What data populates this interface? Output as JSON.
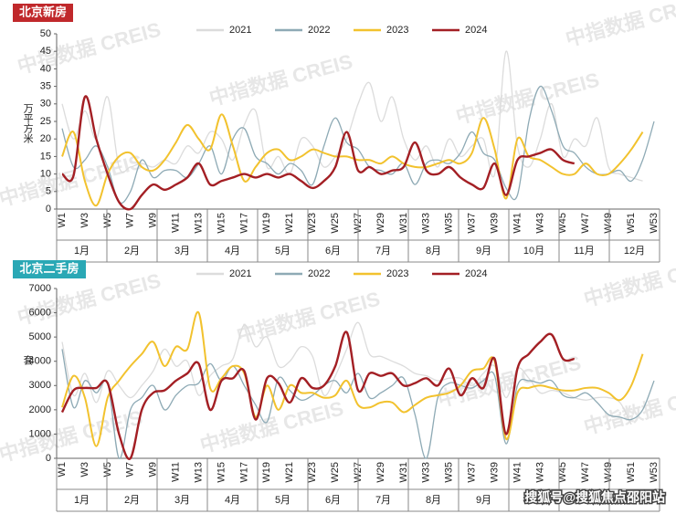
{
  "chart_data": [
    {
      "type": "line",
      "title": "北京新房",
      "y_label": "万平方米",
      "categories": [
        "W1",
        null,
        "W3",
        null,
        "W5",
        null,
        "W7",
        null,
        "W9",
        null,
        "W11",
        null,
        "W13",
        null,
        "W15",
        null,
        "W17",
        null,
        "W19",
        null,
        "W21",
        null,
        "W23",
        null,
        "W25",
        null,
        "W27",
        null,
        "W29",
        null,
        "W31",
        null,
        "W33",
        null,
        "W35",
        null,
        "W37",
        null,
        "W39",
        null,
        "W41",
        null,
        "W43",
        null,
        "W45",
        null,
        "W47",
        null,
        "W49",
        null,
        "W51",
        null,
        "W53"
      ],
      "months": [
        "1月",
        "2月",
        "3月",
        "4月",
        "5月",
        "6月",
        "7月",
        "8月",
        "9月",
        "10月",
        "11月",
        "12月"
      ],
      "ylim": [
        0,
        50
      ],
      "yticks": [
        0,
        5,
        10,
        15,
        20,
        25,
        30,
        35,
        40,
        45,
        50
      ],
      "series": [
        {
          "name": "2021",
          "color": "#dcdcdc",
          "values": [
            30,
            20,
            28,
            20,
            32,
            12,
            12,
            13,
            12,
            14,
            13,
            18,
            16,
            22,
            20,
            14,
            24,
            28,
            12,
            15,
            10,
            20,
            18,
            12,
            15,
            20,
            30,
            36,
            25,
            32,
            20,
            14,
            18,
            12,
            20,
            15,
            18,
            20,
            10,
            45,
            18,
            12,
            20,
            30,
            15,
            20,
            18,
            26,
            12,
            10,
            9,
            8,
            null
          ]
        },
        {
          "name": "2022",
          "color": "#8eaab5",
          "values": [
            23,
            12,
            14,
            18,
            12,
            2,
            5,
            14,
            9,
            11,
            11,
            9,
            13,
            18,
            10,
            20,
            23,
            15,
            13,
            10,
            13,
            11,
            7,
            18,
            26,
            19,
            17,
            12,
            11,
            10,
            13,
            7,
            13,
            14,
            13,
            16,
            22,
            16,
            14,
            6,
            4,
            25,
            35,
            28,
            18,
            16,
            12,
            10,
            10,
            11,
            8,
            14,
            25
          ]
        },
        {
          "name": "2023",
          "color": "#f2c22e",
          "values": [
            15,
            22,
            8,
            1,
            10,
            15,
            16,
            12,
            11,
            14,
            19,
            24,
            20,
            17,
            27,
            18,
            8,
            12,
            16,
            17,
            14,
            15,
            17,
            16,
            15,
            15,
            14,
            14,
            13,
            15,
            13,
            12,
            12,
            13,
            14,
            13,
            16,
            26,
            17,
            3,
            20,
            15,
            14,
            12,
            10,
            10,
            13,
            10,
            10,
            13,
            17,
            22,
            null
          ]
        },
        {
          "name": "2024",
          "color": "#a31f24",
          "values": [
            10,
            9.5,
            32,
            20,
            10,
            2,
            0,
            4,
            7,
            5.5,
            7,
            9,
            13,
            7,
            8,
            9,
            10,
            9,
            10,
            9,
            10,
            8,
            6,
            8,
            12,
            22,
            11,
            12,
            10,
            11,
            12,
            19,
            11,
            10,
            12,
            9,
            7,
            6,
            13,
            4,
            14,
            15,
            16,
            17,
            14,
            13,
            null,
            null,
            null,
            null,
            null,
            null,
            null
          ]
        }
      ]
    },
    {
      "type": "line",
      "title": "北京二手房",
      "y_label": "套",
      "categories": [
        "W1",
        null,
        "W3",
        null,
        "W5",
        null,
        "W7",
        null,
        "W9",
        null,
        "W11",
        null,
        "W13",
        null,
        "W15",
        null,
        "W17",
        null,
        "W19",
        null,
        "W21",
        null,
        "W23",
        null,
        "W25",
        null,
        "W27",
        null,
        "W29",
        null,
        "W31",
        null,
        "W33",
        null,
        "W35",
        null,
        "W37",
        null,
        "W39",
        null,
        "W41",
        null,
        "W43",
        null,
        "W45",
        null,
        "W47",
        null,
        "W49",
        null,
        "W51",
        null,
        "W53"
      ],
      "months": [
        "1月",
        "2月",
        "3月",
        "4月",
        "5月",
        "6月",
        "7月",
        "8月",
        "9月"
      ],
      "ylim": [
        0,
        7000
      ],
      "yticks": [
        0,
        1000,
        2000,
        3000,
        4000,
        5000,
        6000,
        7000
      ],
      "series": [
        {
          "name": "2021",
          "color": "#dcdcdc",
          "values": [
            4800,
            2600,
            3500,
            2300,
            3600,
            3000,
            2500,
            3000,
            3600,
            4500,
            3800,
            4000,
            2600,
            3400,
            3800,
            4100,
            5500,
            4600,
            5000,
            3800,
            4000,
            4600,
            4200,
            2600,
            3400,
            4500,
            5600,
            4300,
            4200,
            4000,
            3800,
            3500,
            3400,
            3200,
            3300,
            3300,
            3000,
            3500,
            3800,
            2500,
            3700,
            3300,
            2700,
            2800,
            2700,
            2500,
            2400,
            2500,
            2500,
            2300,
            1400,
            null,
            null
          ]
        },
        {
          "name": "2022",
          "color": "#8eaab5",
          "values": [
            4500,
            2100,
            3200,
            2700,
            3100,
            0,
            2000,
            2500,
            3000,
            2000,
            2600,
            3000,
            3100,
            3900,
            3200,
            3800,
            3000,
            2200,
            1500,
            3300,
            2800,
            2400,
            2600,
            3000,
            3200,
            2700,
            3500,
            2500,
            2700,
            3000,
            3300,
            1800,
            0,
            2500,
            3100,
            3000,
            2900,
            3200,
            3400,
            600,
            3000,
            3200,
            3100,
            3200,
            2600,
            2500,
            2700,
            2300,
            1800,
            1700,
            1600,
            2000,
            3200
          ]
        },
        {
          "name": "2023",
          "color": "#f2c22e",
          "values": [
            2100,
            3400,
            2500,
            500,
            2500,
            3200,
            3800,
            4300,
            4800,
            3800,
            4600,
            4500,
            6000,
            2900,
            3300,
            3800,
            3500,
            1700,
            3000,
            2000,
            3000,
            2700,
            2700,
            2500,
            2600,
            3200,
            2200,
            2100,
            2300,
            2300,
            1900,
            2200,
            2500,
            2600,
            2700,
            3000,
            3600,
            3700,
            4000,
            800,
            2700,
            2900,
            3000,
            2900,
            2800,
            2800,
            2900,
            2900,
            2700,
            2400,
            3000,
            4300,
            null
          ]
        },
        {
          "name": "2024",
          "color": "#a31f24",
          "values": [
            1900,
            2800,
            2900,
            2900,
            3100,
            1000,
            0,
            2000,
            2700,
            2800,
            3200,
            3500,
            3900,
            2000,
            3200,
            3300,
            3600,
            1600,
            3300,
            3100,
            2300,
            3300,
            2900,
            3000,
            3800,
            5200,
            2800,
            3500,
            3400,
            3500,
            3000,
            3100,
            3300,
            3000,
            3700,
            2600,
            3300,
            2900,
            4100,
            1000,
            3700,
            4300,
            4800,
            5100,
            4100,
            4100,
            null,
            null,
            null,
            null,
            null,
            null,
            null
          ]
        }
      ]
    }
  ],
  "watermark": "中指数据 CREIS",
  "footer": "搜狐号@搜狐焦点邵阳站"
}
